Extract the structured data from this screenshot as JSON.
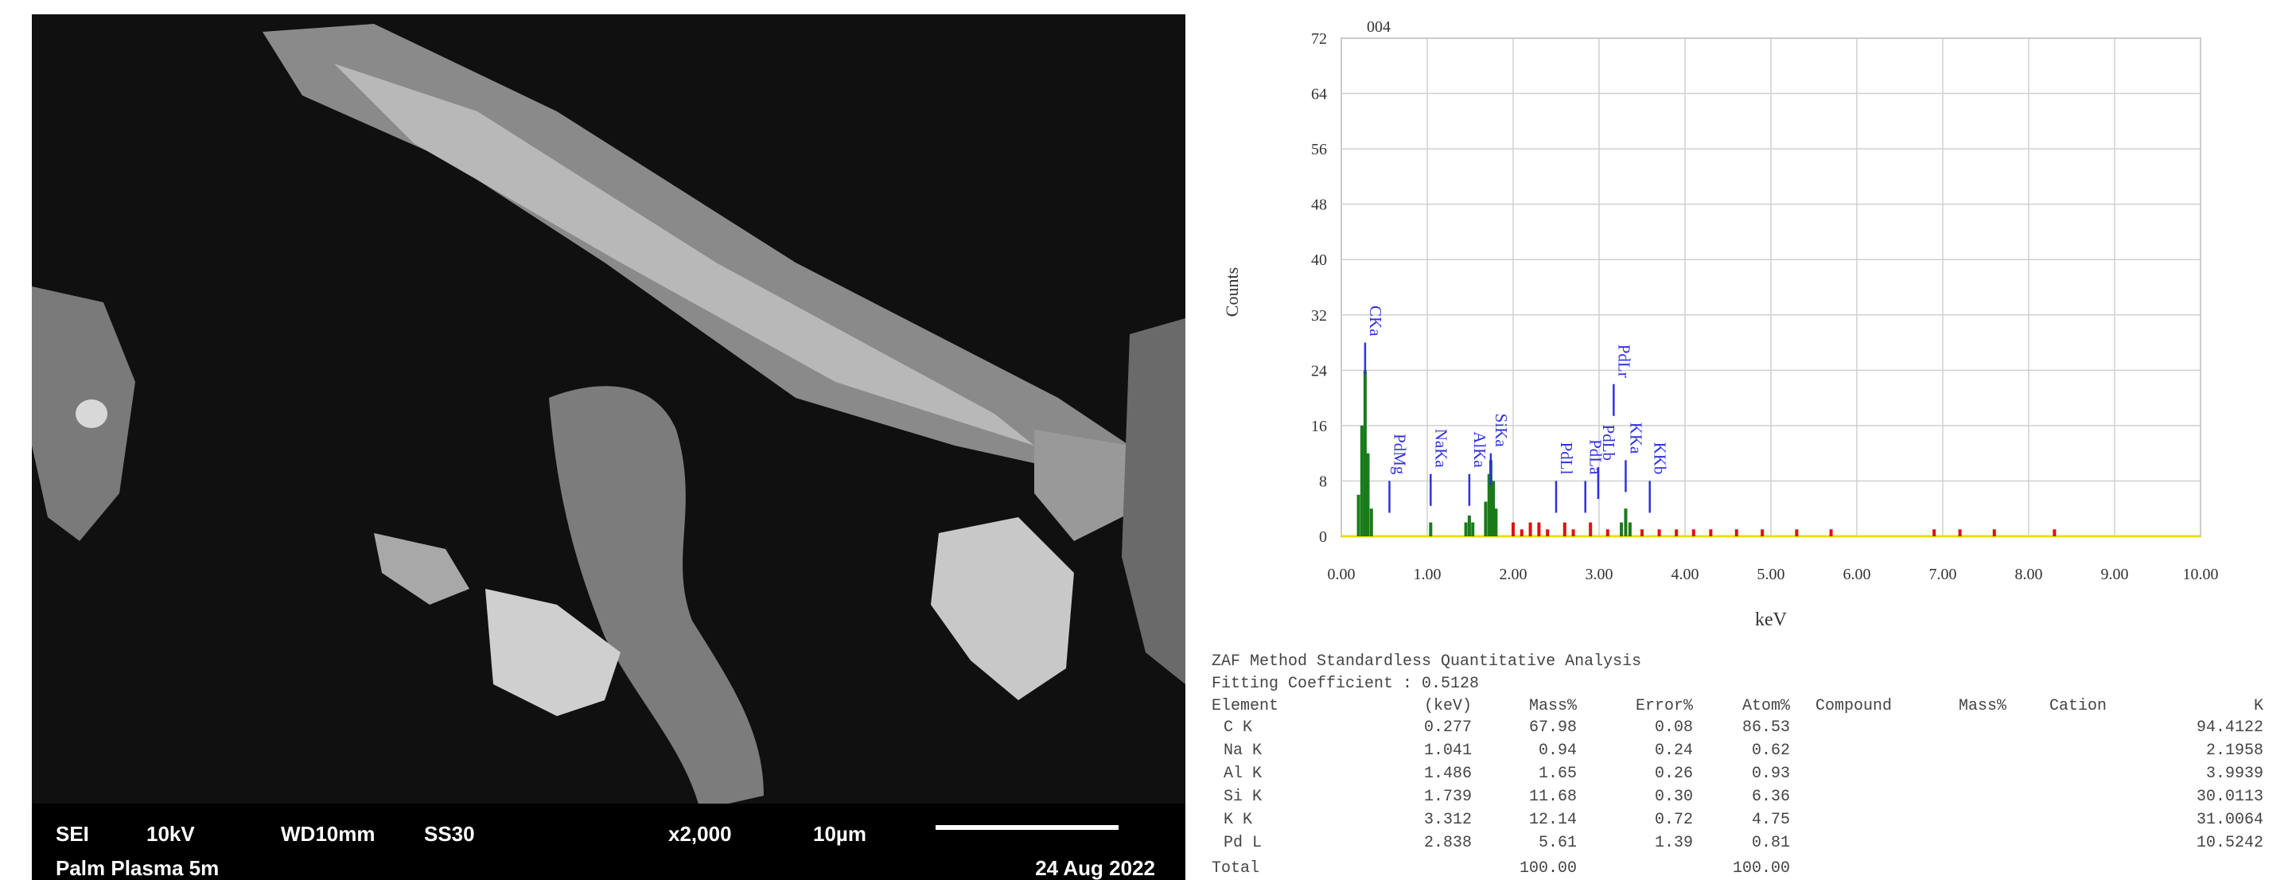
{
  "sem_image": {
    "info_bar": {
      "mode": "SEI",
      "voltage": "10kV",
      "working_distance": "WD10mm",
      "spot_size": "SS30",
      "magnification": "x2,000",
      "scale": "10µm",
      "sample": "Palm Plasma 5m",
      "date": "24 Aug 2022"
    }
  },
  "chart_data": {
    "type": "bar",
    "title": "004",
    "x_label": "keV",
    "y_label": "Counts",
    "xlim": [
      0,
      10
    ],
    "ylim": [
      0,
      72
    ],
    "xticks": [
      {
        "value": 0,
        "label": "0.00"
      },
      {
        "value": 1,
        "label": "1.00"
      },
      {
        "value": 2,
        "label": "2.00"
      },
      {
        "value": 3,
        "label": "3.00"
      },
      {
        "value": 4,
        "label": "4.00"
      },
      {
        "value": 5,
        "label": "5.00"
      },
      {
        "value": 6,
        "label": "6.00"
      },
      {
        "value": 7,
        "label": "7.00"
      },
      {
        "value": 8,
        "label": "8.00"
      },
      {
        "value": 9,
        "label": "9.00"
      },
      {
        "value": 10,
        "label": "10.00"
      }
    ],
    "yticks": [
      0,
      8,
      16,
      24,
      32,
      40,
      48,
      56,
      64,
      72
    ],
    "grid": true,
    "series": [
      {
        "color": "#1a7a1a",
        "x": [
          0.2,
          0.24,
          0.277,
          0.31,
          0.35,
          1.04,
          1.45,
          1.49,
          1.53,
          1.68,
          1.72,
          1.74,
          1.77,
          1.8,
          3.26,
          3.31,
          3.36
        ],
        "values": [
          6,
          16,
          24,
          12,
          4,
          2,
          2,
          3,
          2,
          5,
          9,
          11,
          8,
          4,
          2,
          4,
          2
        ]
      },
      {
        "color": "#e01010",
        "x": [
          2.0,
          2.1,
          2.2,
          2.3,
          2.4,
          2.6,
          2.7,
          2.9,
          3.1,
          3.5,
          3.7,
          3.9,
          4.1,
          4.3,
          4.6,
          4.9,
          5.3,
          5.7,
          6.9,
          7.2,
          7.6,
          8.3
        ],
        "values": [
          2,
          1,
          2,
          2,
          1,
          2,
          1,
          2,
          1,
          1,
          1,
          1,
          1,
          1,
          1,
          1,
          1,
          1,
          1,
          1,
          1,
          1
        ]
      }
    ],
    "markers_color": "#3030e0",
    "markers": [
      {
        "label": "CKa",
        "x": 0.277,
        "height": 28
      },
      {
        "label": "PdMg",
        "x": 0.56,
        "height": 8
      },
      {
        "label": "NaKa",
        "x": 1.04,
        "height": 9
      },
      {
        "label": "AlKa",
        "x": 1.49,
        "height": 9
      },
      {
        "label": "SiKa",
        "x": 1.74,
        "height": 12
      },
      {
        "label": "PdLl",
        "x": 2.5,
        "height": 8
      },
      {
        "label": "PdLa",
        "x": 2.84,
        "height": 8
      },
      {
        "label": "PdLb",
        "x": 2.99,
        "height": 10
      },
      {
        "label": "PdLr",
        "x": 3.17,
        "height": 22
      },
      {
        "label": "KKa",
        "x": 3.31,
        "height": 11
      },
      {
        "label": "KKb",
        "x": 3.59,
        "height": 8
      }
    ]
  },
  "analysis": {
    "title": "ZAF Method Standardless Quantitative Analysis",
    "fitting": "Fitting Coefficient : 0.5128",
    "columns": [
      "Element",
      "(keV)",
      "Mass%",
      "Error%",
      "Atom%",
      "Compound",
      "Mass%",
      "Cation",
      "K"
    ],
    "rows": [
      [
        "C K",
        "0.277",
        "67.98",
        "0.08",
        "86.53",
        "94.4122"
      ],
      [
        "Na K",
        "1.041",
        "0.94",
        "0.24",
        "0.62",
        "2.1958"
      ],
      [
        "Al K",
        "1.486",
        "1.65",
        "0.26",
        "0.93",
        "3.9939"
      ],
      [
        "Si K",
        "1.739",
        "11.68",
        "0.30",
        "6.36",
        "30.0113"
      ],
      [
        "K K",
        "3.312",
        "12.14",
        "0.72",
        "4.75",
        "31.0064"
      ],
      [
        "Pd L",
        "2.838",
        "5.61",
        "1.39",
        "0.81",
        "10.5242"
      ]
    ],
    "total": [
      "Total",
      "100.00",
      "100.00"
    ]
  }
}
